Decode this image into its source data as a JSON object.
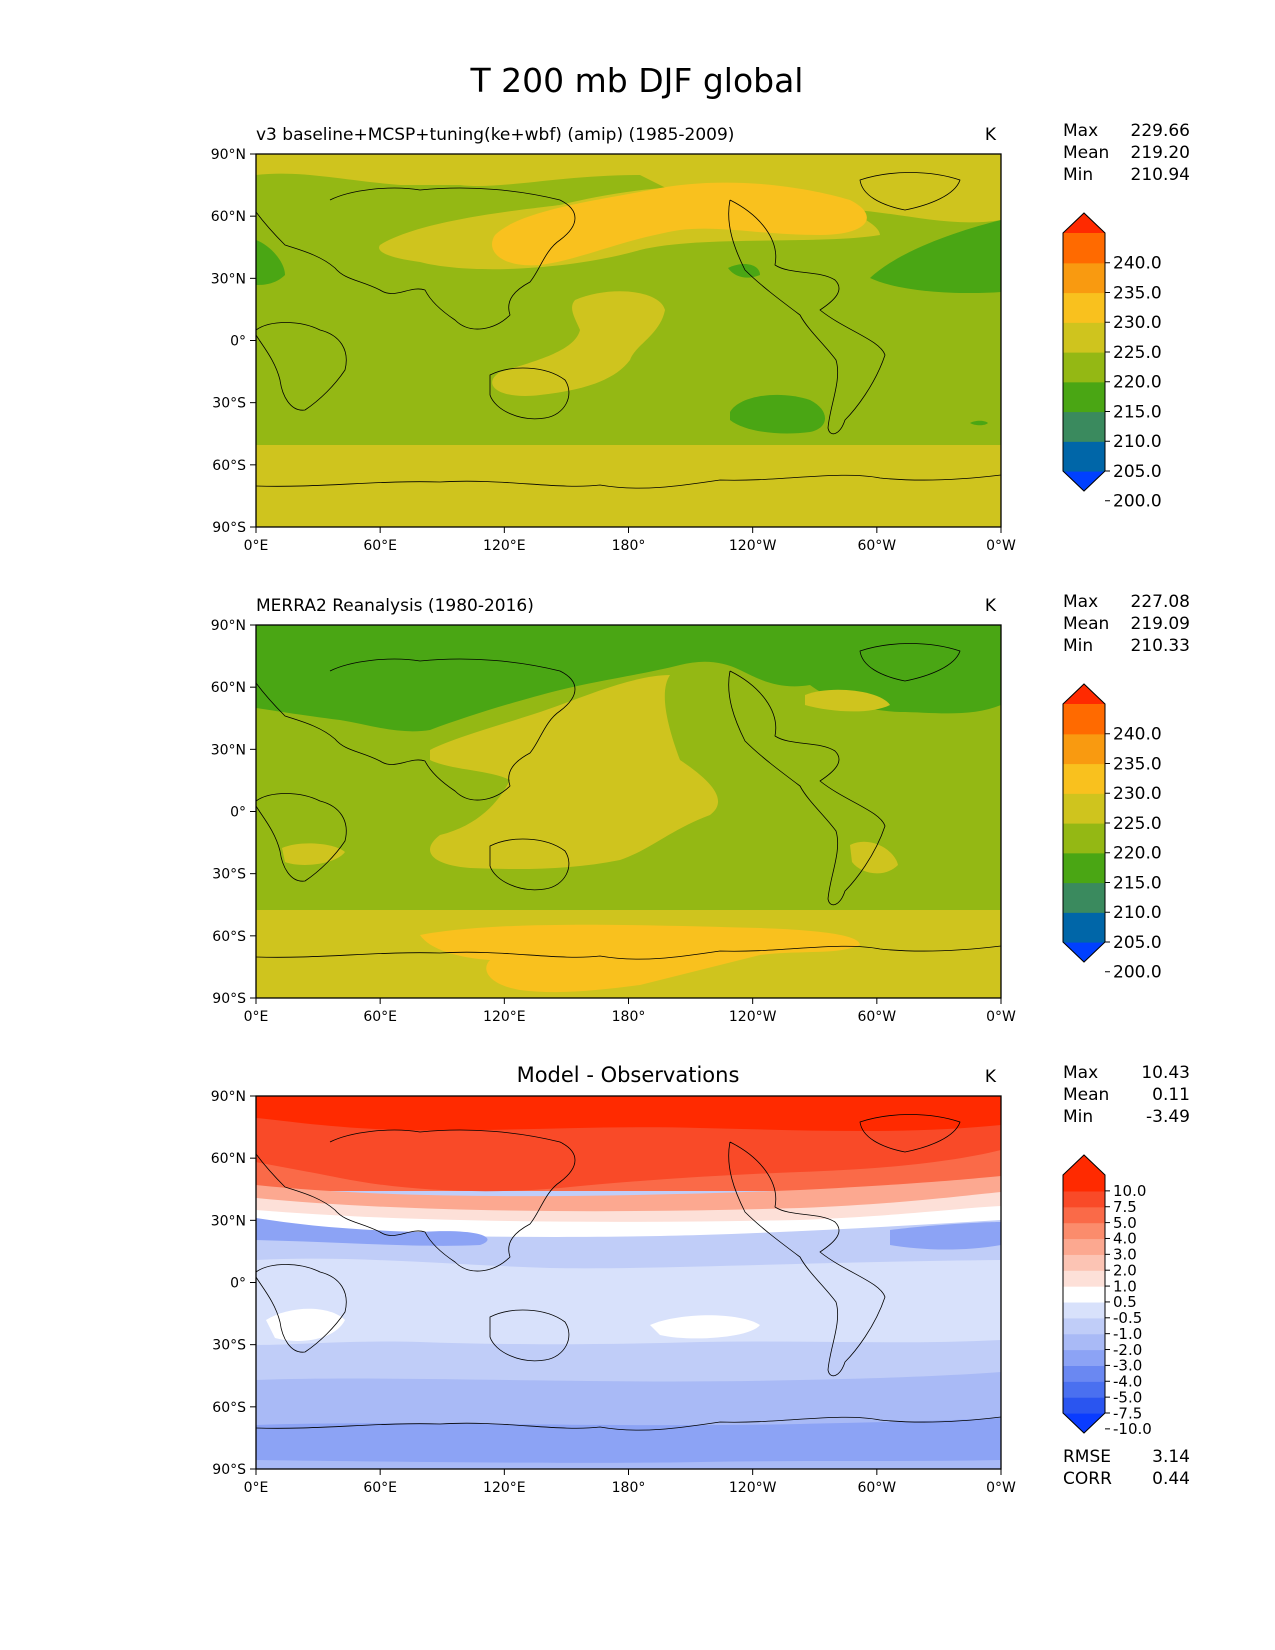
{
  "figure_title": "T 200 mb DJF global",
  "chart_data": [
    {
      "type": "heatmap",
      "title": "v3 baseline+MCSP+tuning(ke+wbf) (amip) (1985-2009)",
      "units": "K",
      "stats": {
        "max_label": "Max",
        "max": "229.66",
        "mean_label": "Mean",
        "mean": "219.20",
        "min_label": "Min",
        "min": "210.94"
      },
      "xticks": [
        "0°E",
        "60°E",
        "120°E",
        "180°",
        "120°W",
        "60°W",
        "0°W"
      ],
      "yticks": [
        "90°N",
        "60°N",
        "30°N",
        "0°",
        "30°S",
        "60°S",
        "90°S"
      ],
      "colorbar": {
        "labels": [
          "240.0",
          "235.0",
          "230.0",
          "225.0",
          "220.0",
          "215.0",
          "210.0",
          "205.0",
          "200.0"
        ],
        "colors": [
          "#0040ff",
          "#0066a8",
          "#3a8a5e",
          "#4aa614",
          "#94b814",
          "#cfc41e",
          "#f9c11e",
          "#f99a10",
          "#ff6a00",
          "#ff2a00"
        ]
      },
      "regions": [
        {
          "name": "band-60s-90s",
          "lat_range": [
            -90,
            -47
          ],
          "value": 222.5
        },
        {
          "name": "warm-north-pacific",
          "center": [
            160,
            50
          ],
          "value": 227.5
        },
        {
          "name": "warm-tropical-pacific",
          "center": [
            170,
            10
          ],
          "value": 222.5
        },
        {
          "name": "cold-atlantic",
          "center": [
            330,
            33
          ],
          "value": 212.5
        },
        {
          "name": "cold-south-pacific",
          "center": [
            235,
            -25
          ],
          "value": 212.5
        }
      ]
    },
    {
      "type": "heatmap",
      "title": "MERRA2 Reanalysis (1980-2016)",
      "units": "K",
      "stats": {
        "max_label": "Max",
        "max": "227.08",
        "mean_label": "Mean",
        "mean": "219.09",
        "min_label": "Min",
        "min": "210.33"
      },
      "xticks": [
        "0°E",
        "60°E",
        "120°E",
        "180°",
        "120°W",
        "60°W",
        "0°W"
      ],
      "yticks": [
        "90°N",
        "60°N",
        "30°N",
        "0°",
        "30°S",
        "60°S",
        "90°S"
      ],
      "colorbar": {
        "labels": [
          "240.0",
          "235.0",
          "230.0",
          "225.0",
          "220.0",
          "215.0",
          "210.0",
          "205.0",
          "200.0"
        ],
        "colors": [
          "#0040ff",
          "#0066a8",
          "#3a8a5e",
          "#4aa614",
          "#94b814",
          "#cfc41e",
          "#f9c11e",
          "#f99a10",
          "#ff6a00",
          "#ff2a00"
        ]
      },
      "regions": [
        {
          "name": "cold-arctic",
          "lat_range": [
            45,
            90
          ],
          "value": 212.5
        },
        {
          "name": "warm-pacific",
          "center": [
            160,
            20
          ],
          "value": 222.5
        },
        {
          "name": "band-south",
          "lat_range": [
            -90,
            -47
          ],
          "value": 222.5
        },
        {
          "name": "warm-southern-pacific",
          "center": [
            180,
            -68
          ],
          "value": 227.5
        }
      ]
    },
    {
      "type": "heatmap",
      "title": "Model - Observations",
      "units": "K",
      "stats": {
        "max_label": "Max",
        "max": "10.43",
        "mean_label": "Mean",
        "mean": "0.11",
        "min_label": "Min",
        "min": "-3.49"
      },
      "error_stats": {
        "rmse_label": "RMSE",
        "rmse": "3.14",
        "corr_label": "CORR",
        "corr": "0.44"
      },
      "xticks": [
        "0°E",
        "60°E",
        "120°E",
        "180°",
        "120°W",
        "60°W",
        "0°W"
      ],
      "yticks": [
        "90°N",
        "60°N",
        "30°N",
        "0°",
        "30°S",
        "60°S",
        "90°S"
      ],
      "colorbar": {
        "labels": [
          "10.0",
          "7.5",
          "5.0",
          "4.0",
          "3.0",
          "2.0",
          "1.0",
          "0.5",
          "-0.5",
          "-1.0",
          "-2.0",
          "-3.0",
          "-4.0",
          "-5.0",
          "-7.5",
          "-10.0"
        ],
        "colors": [
          "#0a3cff",
          "#2a55f0",
          "#4a70f0",
          "#6a88f2",
          "#8ca3f5",
          "#a9baf6",
          "#c0cdf8",
          "#d8e1fb",
          "#ffffff",
          "#fde0d8",
          "#fcc4b4",
          "#fca890",
          "#fb8c6c",
          "#fa6a48",
          "#f94a28",
          "#ff2a00",
          "#ff2a00"
        ]
      },
      "regions": [
        {
          "name": "warm-arctic",
          "lat_range": [
            40,
            90
          ],
          "value": 7.5
        },
        {
          "name": "transition",
          "lat_range": [
            28,
            40
          ],
          "value": 1.0
        },
        {
          "name": "cool-tropics",
          "lat_range": [
            -30,
            28
          ],
          "value": -1.0
        },
        {
          "name": "cool-southern",
          "lat_range": [
            -90,
            -30
          ],
          "value": -3.0
        }
      ]
    }
  ]
}
